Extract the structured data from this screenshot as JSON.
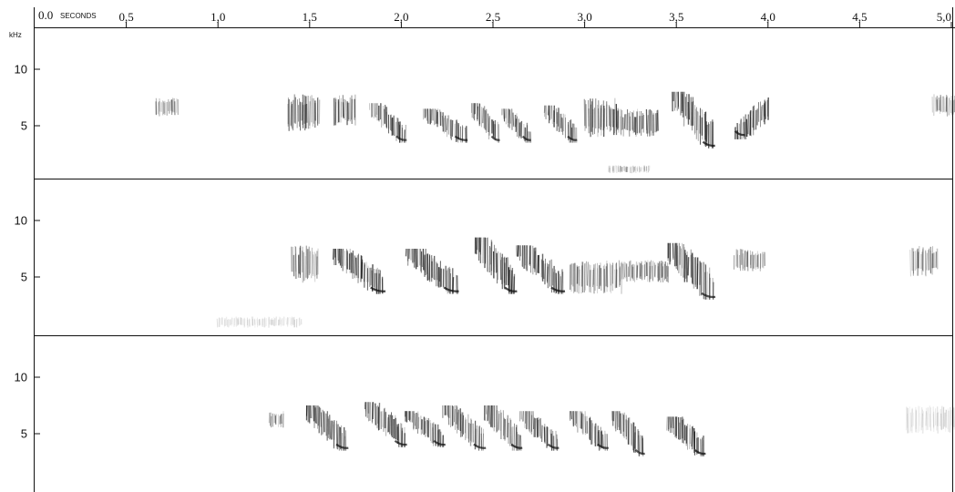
{
  "chart_data": {
    "type": "spectrogram",
    "x_axis": {
      "start_label": "0.0",
      "unit_label": "SECONDS",
      "range": [
        0,
        5.0
      ],
      "ticks": [
        {
          "value": 0.5,
          "label": "0,5"
        },
        {
          "value": 1.0,
          "label": "1,0"
        },
        {
          "value": 1.5,
          "label": "1,5"
        },
        {
          "value": 2.0,
          "label": "2,0"
        },
        {
          "value": 2.5,
          "label": "2,5"
        },
        {
          "value": 3.0,
          "label": "3,0"
        },
        {
          "value": 3.5,
          "label": "3,5"
        },
        {
          "value": 4.0,
          "label": "4,0"
        },
        {
          "value": 4.5,
          "label": "4,5"
        },
        {
          "value": 5.0,
          "label": "5,0"
        }
      ]
    },
    "y_axis": {
      "unit_label": "kHz",
      "range": [
        0,
        13
      ],
      "ticks": [
        {
          "value": 10,
          "label": "10"
        },
        {
          "value": 5,
          "label": "5"
        }
      ]
    },
    "panels": [
      {
        "id": "panel-1",
        "notes": [
          {
            "t0": 0.66,
            "t1": 0.78,
            "f_lo": 5.8,
            "f_hi": 7.5,
            "shape": "buzz",
            "ink": 0.45
          },
          {
            "t0": 1.38,
            "t1": 1.55,
            "f_lo": 4.5,
            "f_hi": 7.8,
            "shape": "buzz",
            "ink": 0.7
          },
          {
            "t0": 1.63,
            "t1": 1.75,
            "f_lo": 5.0,
            "f_hi": 7.8,
            "shape": "buzz",
            "ink": 0.7
          },
          {
            "t0": 1.83,
            "t1": 2.02,
            "f_lo": 3.5,
            "f_hi": 7.0,
            "shape": "down",
            "ink": 0.75
          },
          {
            "t0": 2.12,
            "t1": 2.35,
            "f_lo": 3.5,
            "f_hi": 6.5,
            "shape": "down",
            "ink": 0.8
          },
          {
            "t0": 2.38,
            "t1": 2.53,
            "f_lo": 3.5,
            "f_hi": 7.0,
            "shape": "down",
            "ink": 0.8
          },
          {
            "t0": 2.55,
            "t1": 2.7,
            "f_lo": 3.5,
            "f_hi": 6.5,
            "shape": "down",
            "ink": 0.8
          },
          {
            "t0": 2.78,
            "t1": 2.95,
            "f_lo": 3.5,
            "f_hi": 6.8,
            "shape": "down",
            "ink": 0.8
          },
          {
            "t0": 3.0,
            "t1": 3.18,
            "f_lo": 4.0,
            "f_hi": 7.5,
            "shape": "buzz",
            "ink": 0.75
          },
          {
            "t0": 3.17,
            "t1": 3.4,
            "f_lo": 4.0,
            "f_hi": 6.5,
            "shape": "buzz",
            "ink": 0.7
          },
          {
            "t0": 3.48,
            "t1": 3.7,
            "f_lo": 3.0,
            "f_hi": 8.0,
            "shape": "down",
            "ink": 0.85
          },
          {
            "t0": 3.82,
            "t1": 4.0,
            "f_lo": 3.8,
            "f_hi": 7.5,
            "shape": "up",
            "ink": 0.85
          },
          {
            "t0": 3.13,
            "t1": 3.35,
            "f_lo": 0.8,
            "f_hi": 1.5,
            "shape": "buzz",
            "ink": 0.3
          },
          {
            "t0": 4.9,
            "t1": 5.05,
            "f_lo": 5.8,
            "f_hi": 7.8,
            "shape": "buzz",
            "ink": 0.45
          }
        ]
      },
      {
        "id": "panel-2",
        "notes": [
          {
            "t0": 1.4,
            "t1": 1.55,
            "f_lo": 4.5,
            "f_hi": 7.8,
            "shape": "buzz",
            "ink": 0.55
          },
          {
            "t0": 1.63,
            "t1": 1.9,
            "f_lo": 3.5,
            "f_hi": 7.5,
            "shape": "down",
            "ink": 0.85
          },
          {
            "t0": 2.03,
            "t1": 2.3,
            "f_lo": 3.5,
            "f_hi": 7.5,
            "shape": "down",
            "ink": 0.85
          },
          {
            "t0": 2.4,
            "t1": 2.62,
            "f_lo": 3.5,
            "f_hi": 8.5,
            "shape": "down",
            "ink": 0.85
          },
          {
            "t0": 2.63,
            "t1": 2.88,
            "f_lo": 3.5,
            "f_hi": 7.8,
            "shape": "down",
            "ink": 0.85
          },
          {
            "t0": 2.92,
            "t1": 3.2,
            "f_lo": 3.5,
            "f_hi": 6.5,
            "shape": "buzz",
            "ink": 0.55
          },
          {
            "t0": 3.2,
            "t1": 3.46,
            "f_lo": 4.5,
            "f_hi": 6.5,
            "shape": "buzz",
            "ink": 0.6
          },
          {
            "t0": 3.45,
            "t1": 3.7,
            "f_lo": 3.0,
            "f_hi": 8.0,
            "shape": "down",
            "ink": 0.8
          },
          {
            "t0": 3.82,
            "t1": 3.98,
            "f_lo": 5.5,
            "f_hi": 7.5,
            "shape": "buzz",
            "ink": 0.5
          },
          {
            "t0": 4.78,
            "t1": 4.92,
            "f_lo": 5.0,
            "f_hi": 7.8,
            "shape": "buzz",
            "ink": 0.55
          },
          {
            "t0": 1.0,
            "t1": 1.45,
            "f_lo": 0.5,
            "f_hi": 1.5,
            "shape": "buzz",
            "ink": 0.15
          }
        ]
      },
      {
        "id": "panel-3",
        "notes": [
          {
            "t0": 1.28,
            "t1": 1.36,
            "f_lo": 5.5,
            "f_hi": 7.0,
            "shape": "buzz",
            "ink": 0.55
          },
          {
            "t0": 1.48,
            "t1": 1.7,
            "f_lo": 3.5,
            "f_hi": 7.5,
            "shape": "down",
            "ink": 0.8
          },
          {
            "t0": 1.8,
            "t1": 2.02,
            "f_lo": 3.8,
            "f_hi": 7.8,
            "shape": "down",
            "ink": 0.8
          },
          {
            "t0": 2.02,
            "t1": 2.23,
            "f_lo": 3.8,
            "f_hi": 7.0,
            "shape": "down",
            "ink": 0.8
          },
          {
            "t0": 2.23,
            "t1": 2.45,
            "f_lo": 3.5,
            "f_hi": 7.5,
            "shape": "down",
            "ink": 0.8
          },
          {
            "t0": 2.45,
            "t1": 2.65,
            "f_lo": 3.5,
            "f_hi": 7.5,
            "shape": "down",
            "ink": 0.85
          },
          {
            "t0": 2.65,
            "t1": 2.85,
            "f_lo": 3.5,
            "f_hi": 7.0,
            "shape": "down",
            "ink": 0.8
          },
          {
            "t0": 2.92,
            "t1": 3.12,
            "f_lo": 3.5,
            "f_hi": 7.0,
            "shape": "down",
            "ink": 0.8
          },
          {
            "t0": 3.15,
            "t1": 3.32,
            "f_lo": 3.0,
            "f_hi": 7.0,
            "shape": "down",
            "ink": 0.75
          },
          {
            "t0": 3.45,
            "t1": 3.65,
            "f_lo": 3.0,
            "f_hi": 6.5,
            "shape": "down",
            "ink": 0.85
          },
          {
            "t0": 4.75,
            "t1": 5.05,
            "f_lo": 5.0,
            "f_hi": 7.5,
            "shape": "buzz",
            "ink": 0.15
          }
        ]
      }
    ]
  }
}
